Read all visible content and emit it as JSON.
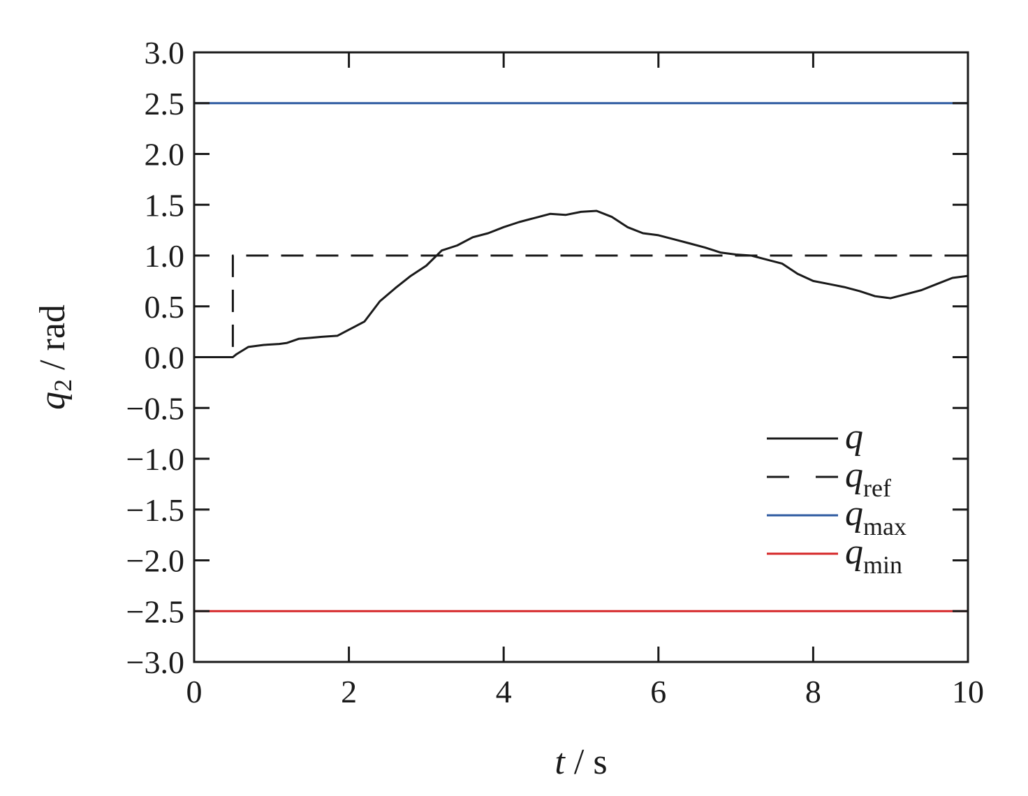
{
  "chart_data": {
    "type": "line",
    "title": "",
    "xlabel": {
      "var": "t",
      "unit": "s"
    },
    "ylabel": {
      "var": "q",
      "sub": "2",
      "unit": "rad"
    },
    "xlim": [
      0,
      10
    ],
    "ylim": [
      -3.0,
      3.0
    ],
    "xticks": [
      0,
      2,
      4,
      6,
      8,
      10
    ],
    "yticks": [
      3.0,
      2.5,
      2.0,
      1.5,
      1.0,
      0.5,
      0.0,
      -0.5,
      -1.0,
      -1.5,
      -2.0,
      -2.5,
      -3.0
    ],
    "ytick_labels": [
      "3.0",
      "2.5",
      "2.0",
      "1.5",
      "1.0",
      "0.5",
      "0.0",
      "−0.5",
      "−1.0",
      "−1.5",
      "−2.0",
      "−2.5",
      "−3.0"
    ],
    "xtick_labels": [
      "0",
      "2",
      "4",
      "6",
      "8",
      "10"
    ],
    "grid": false,
    "legend_position": "bottom-right",
    "series": [
      {
        "name": "q",
        "sub": "",
        "color": "#1a1a1a",
        "style": "solid",
        "x": [
          0,
          0.5,
          0.55,
          0.7,
          0.9,
          1.1,
          1.2,
          1.35,
          1.5,
          1.65,
          1.85,
          2.0,
          2.2,
          2.4,
          2.6,
          2.8,
          3.0,
          3.2,
          3.4,
          3.6,
          3.8,
          4.0,
          4.2,
          4.4,
          4.6,
          4.8,
          5.0,
          5.2,
          5.4,
          5.6,
          5.8,
          6.0,
          6.2,
          6.4,
          6.6,
          6.8,
          7.0,
          7.2,
          7.4,
          7.6,
          7.8,
          8.0,
          8.2,
          8.4,
          8.6,
          8.8,
          9.0,
          9.2,
          9.4,
          9.6,
          9.8,
          10.0
        ],
        "y": [
          0.0,
          0.0,
          0.03,
          0.1,
          0.12,
          0.13,
          0.14,
          0.18,
          0.19,
          0.2,
          0.21,
          0.27,
          0.35,
          0.55,
          0.68,
          0.8,
          0.9,
          1.05,
          1.1,
          1.18,
          1.22,
          1.28,
          1.33,
          1.37,
          1.41,
          1.4,
          1.43,
          1.44,
          1.38,
          1.28,
          1.22,
          1.2,
          1.16,
          1.12,
          1.08,
          1.03,
          1.01,
          1.0,
          0.96,
          0.92,
          0.82,
          0.75,
          0.72,
          0.69,
          0.65,
          0.6,
          0.58,
          0.62,
          0.66,
          0.72,
          0.78,
          0.8
        ]
      },
      {
        "name": "q",
        "sub": "ref",
        "color": "#1a1a1a",
        "style": "dashed",
        "x": [
          0.5,
          0.5,
          10.0
        ],
        "y": [
          0.1,
          1.0,
          1.0
        ]
      },
      {
        "name": "q",
        "sub": "max",
        "color": "#2d5aa0",
        "style": "solid",
        "x": [
          0,
          10
        ],
        "y": [
          2.5,
          2.5
        ]
      },
      {
        "name": "q",
        "sub": "min",
        "color": "#d62728",
        "style": "solid",
        "x": [
          0,
          10
        ],
        "y": [
          -2.5,
          -2.5
        ]
      }
    ]
  }
}
